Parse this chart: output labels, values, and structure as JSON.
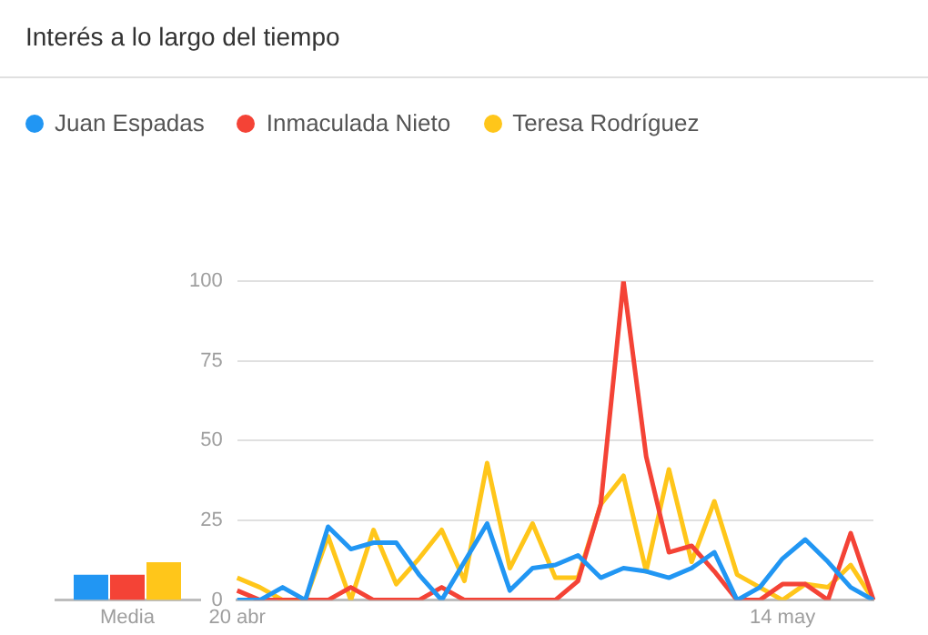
{
  "chart_data": [
    {
      "type": "line",
      "title": "Interés a lo largo del tiempo",
      "categories": [
        "20 abr",
        null,
        null,
        null,
        null,
        null,
        null,
        null,
        null,
        null,
        null,
        null,
        null,
        null,
        null,
        null,
        null,
        null,
        null,
        null,
        null,
        null,
        null,
        null,
        "14 may",
        null,
        null,
        null,
        null
      ],
      "series": [
        {
          "name": "Juan Espadas",
          "color": "#2196f3",
          "values": [
            0,
            0,
            4,
            0,
            23,
            16,
            18,
            18,
            8,
            0,
            12,
            24,
            3,
            10,
            11,
            14,
            7,
            10,
            9,
            7,
            10,
            15,
            0,
            4,
            13,
            19,
            12,
            4,
            0
          ]
        },
        {
          "name": "Inmaculada Nieto",
          "color": "#f44336",
          "values": [
            3,
            0,
            0,
            0,
            0,
            4,
            0,
            0,
            0,
            4,
            0,
            0,
            0,
            0,
            0,
            6,
            30,
            100,
            45,
            15,
            17,
            9,
            0,
            0,
            5,
            5,
            0,
            21,
            0
          ]
        },
        {
          "name": "Teresa Rodríguez",
          "color": "#ffc61a",
          "values": [
            7,
            4,
            0,
            0,
            20,
            0,
            22,
            5,
            13,
            22,
            6,
            43,
            10,
            24,
            7,
            7,
            30,
            39,
            9,
            41,
            12,
            31,
            8,
            4,
            0,
            5,
            4,
            11,
            0
          ]
        }
      ],
      "ylim": [
        0,
        100
      ],
      "yticks": [
        0,
        25,
        50,
        75,
        100
      ],
      "grid": "y",
      "legend": "top left",
      "marker": "none"
    },
    {
      "type": "bar",
      "categories": [
        "Media"
      ],
      "series": [
        {
          "color": "#2196f3",
          "values": [
            8
          ]
        },
        {
          "color": "#f44336",
          "values": [
            8
          ]
        },
        {
          "color": "#ffc61a",
          "values": [
            12
          ]
        }
      ],
      "ylim": [
        0,
        100
      ],
      "tick_labels": "x",
      "grid": false
    }
  ]
}
